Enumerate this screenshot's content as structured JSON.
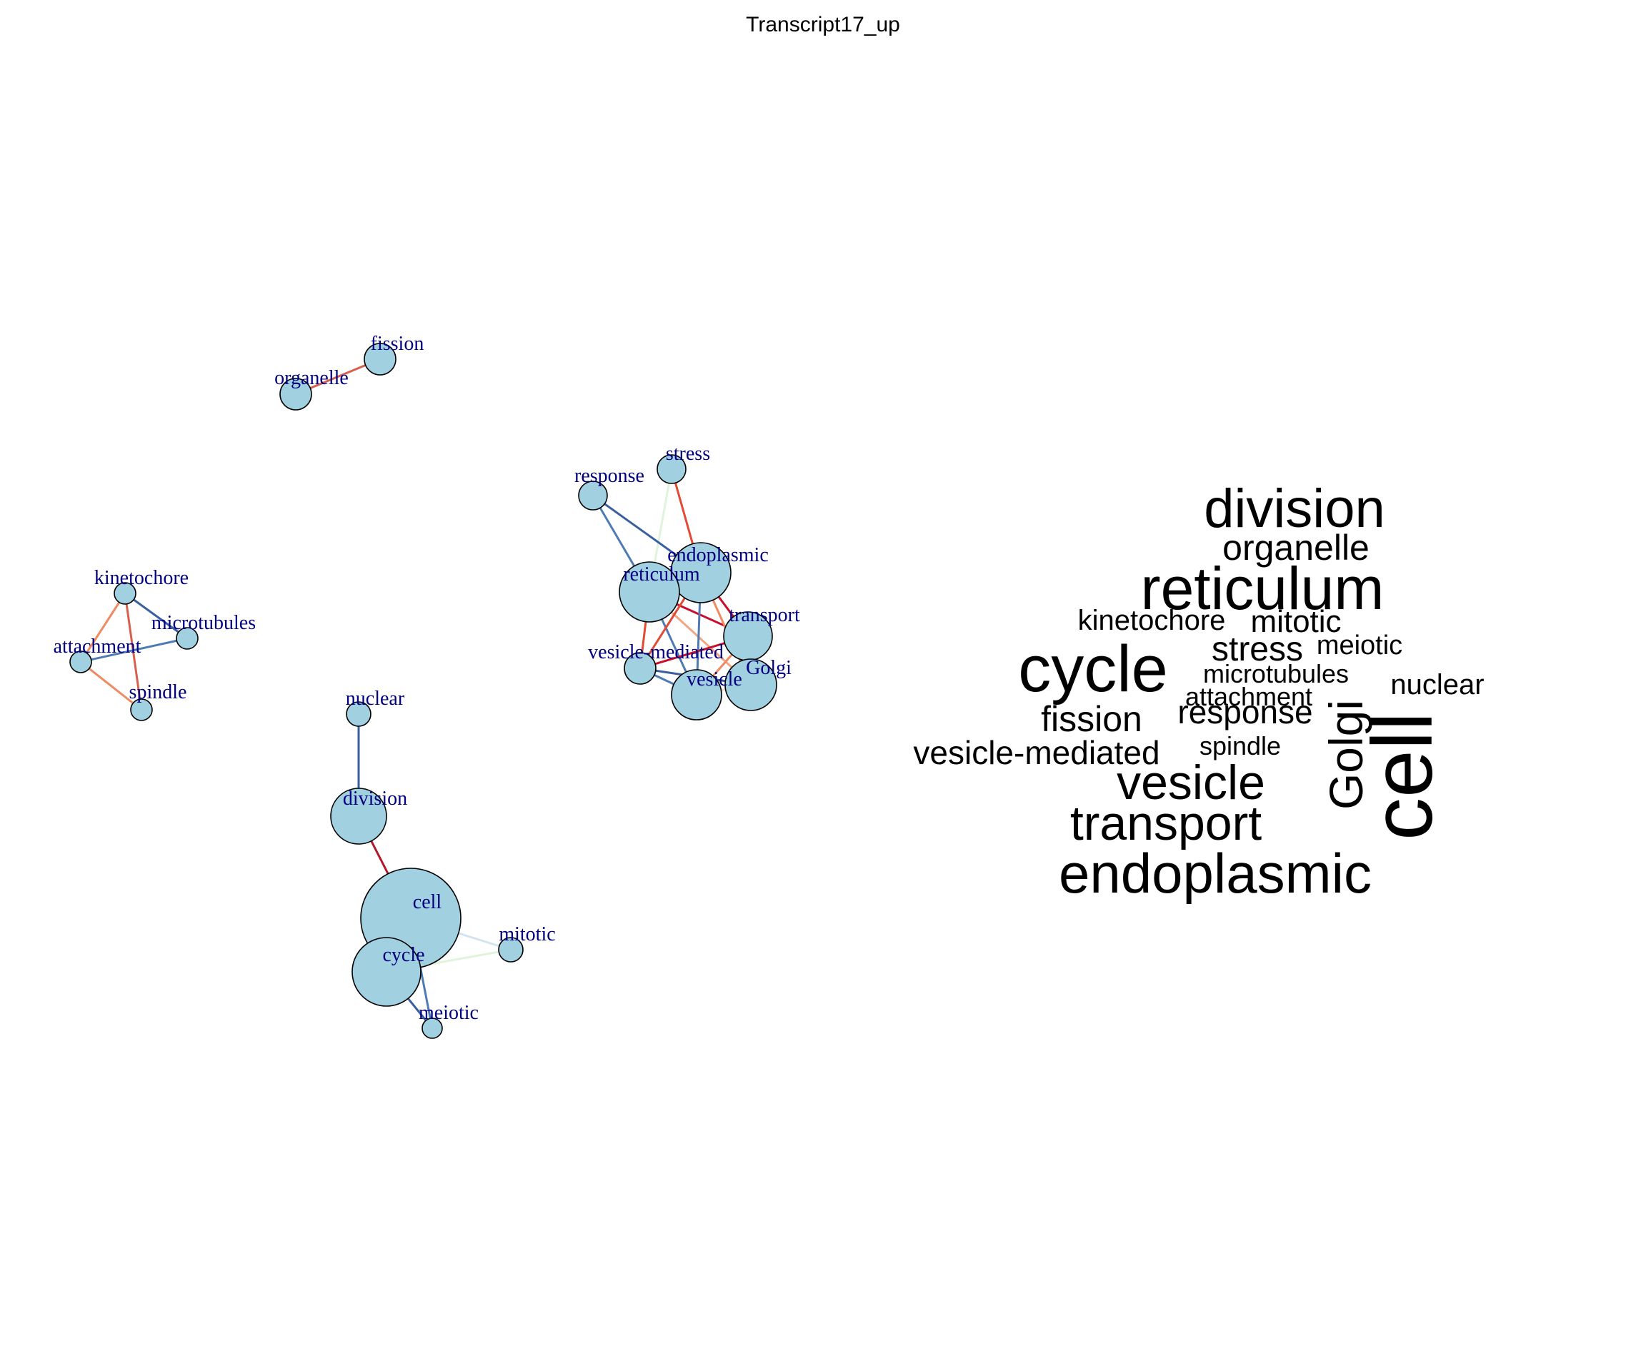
{
  "title": "Transcript17_up",
  "network": {
    "node_color": "#a1d0e0",
    "label_color": "#000080",
    "nodes": [
      {
        "id": "fission",
        "label": "fission"
      },
      {
        "id": "organelle",
        "label": "organelle"
      },
      {
        "id": "stress",
        "label": "stress"
      },
      {
        "id": "response",
        "label": "response"
      },
      {
        "id": "endoplasmic",
        "label": "endoplasmic"
      },
      {
        "id": "reticulum",
        "label": "reticulum"
      },
      {
        "id": "transport",
        "label": "transport"
      },
      {
        "id": "vesicle-mediated",
        "label": "vesicle-mediated"
      },
      {
        "id": "Golgi",
        "label": "Golgi"
      },
      {
        "id": "vesicle",
        "label": "vesicle"
      },
      {
        "id": "kinetochore",
        "label": "kinetochore"
      },
      {
        "id": "microtubules",
        "label": "microtubules"
      },
      {
        "id": "attachment",
        "label": "attachment"
      },
      {
        "id": "spindle",
        "label": "spindle"
      },
      {
        "id": "nuclear",
        "label": "nuclear"
      },
      {
        "id": "division",
        "label": "division"
      },
      {
        "id": "cell",
        "label": "cell"
      },
      {
        "id": "cycle",
        "label": "cycle"
      },
      {
        "id": "mitotic",
        "label": "mitotic"
      },
      {
        "id": "meiotic",
        "label": "meiotic"
      }
    ],
    "edges": [
      {
        "source": "organelle",
        "target": "fission",
        "color": "#d6604d"
      },
      {
        "source": "stress",
        "target": "reticulum",
        "color": "#e0f3db"
      },
      {
        "source": "stress",
        "target": "endoplasmic",
        "color": "#e34a33"
      },
      {
        "source": "response",
        "target": "endoplasmic",
        "color": "#3a5fa0"
      },
      {
        "source": "response",
        "target": "reticulum",
        "color": "#4f7bb5"
      },
      {
        "source": "reticulum",
        "target": "endoplasmic",
        "color": "#b2182b"
      },
      {
        "source": "reticulum",
        "target": "transport",
        "color": "#c8102e"
      },
      {
        "source": "reticulum",
        "target": "vesicle-mediated",
        "color": "#e34a33"
      },
      {
        "source": "reticulum",
        "target": "vesicle",
        "color": "#4f7bb5"
      },
      {
        "source": "reticulum",
        "target": "Golgi",
        "color": "#f4a582"
      },
      {
        "source": "endoplasmic",
        "target": "transport",
        "color": "#c8102e"
      },
      {
        "source": "endoplasmic",
        "target": "vesicle-mediated",
        "color": "#e34a33"
      },
      {
        "source": "endoplasmic",
        "target": "Golgi",
        "color": "#ef8a62"
      },
      {
        "source": "endoplasmic",
        "target": "vesicle",
        "color": "#4f7bb5"
      },
      {
        "source": "transport",
        "target": "vesicle-mediated",
        "color": "#c8102e"
      },
      {
        "source": "vesicle-mediated",
        "target": "vesicle",
        "color": "#4f7bb5"
      },
      {
        "source": "vesicle-mediated",
        "target": "Golgi",
        "color": "#3a5fa0"
      },
      {
        "source": "vesicle",
        "target": "Golgi",
        "color": "#fddbc7"
      },
      {
        "source": "vesicle",
        "target": "transport",
        "color": "#ef8a62"
      },
      {
        "source": "kinetochore",
        "target": "microtubules",
        "color": "#3a5fa0"
      },
      {
        "source": "kinetochore",
        "target": "spindle",
        "color": "#d6604d"
      },
      {
        "source": "kinetochore",
        "target": "attachment",
        "color": "#ef8a62"
      },
      {
        "source": "attachment",
        "target": "microtubules",
        "color": "#4f7bb5"
      },
      {
        "source": "attachment",
        "target": "spindle",
        "color": "#ef8a62"
      },
      {
        "source": "nuclear",
        "target": "division",
        "color": "#3a5fa0"
      },
      {
        "source": "division",
        "target": "cell",
        "color": "#b2182b"
      },
      {
        "source": "cell",
        "target": "cycle",
        "color": "#c6dbef"
      },
      {
        "source": "cell",
        "target": "mitotic",
        "color": "#d1e5f0"
      },
      {
        "source": "cycle",
        "target": "mitotic",
        "color": "#e0f3db"
      },
      {
        "source": "cycle",
        "target": "meiotic",
        "color": "#3a5fa0"
      },
      {
        "source": "cell",
        "target": "meiotic",
        "color": "#4f7bb5"
      }
    ]
  },
  "wordcloud": {
    "words": [
      {
        "text": "division",
        "rotated": false
      },
      {
        "text": "organelle",
        "rotated": false
      },
      {
        "text": "reticulum",
        "rotated": false
      },
      {
        "text": "kinetochore",
        "rotated": false
      },
      {
        "text": "mitotic",
        "rotated": false
      },
      {
        "text": "stress",
        "rotated": false
      },
      {
        "text": "meiotic",
        "rotated": false
      },
      {
        "text": "cycle",
        "rotated": false
      },
      {
        "text": "microtubules",
        "rotated": false
      },
      {
        "text": "nuclear",
        "rotated": false
      },
      {
        "text": "attachment",
        "rotated": false
      },
      {
        "text": "fission",
        "rotated": false
      },
      {
        "text": "response",
        "rotated": false
      },
      {
        "text": "Golgi",
        "rotated": true
      },
      {
        "text": "cell",
        "rotated": true
      },
      {
        "text": "spindle",
        "rotated": false
      },
      {
        "text": "vesicle-mediated",
        "rotated": false
      },
      {
        "text": "vesicle",
        "rotated": false
      },
      {
        "text": "transport",
        "rotated": false
      },
      {
        "text": "endoplasmic",
        "rotated": false
      }
    ]
  }
}
